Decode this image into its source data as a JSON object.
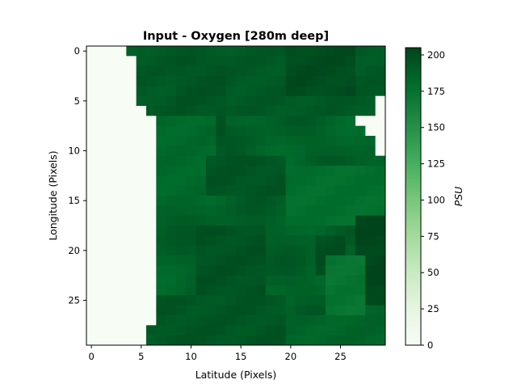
{
  "chart_data": {
    "type": "heatmap",
    "title": "Input - Oxygen [280m deep]",
    "xlabel": "Latitude (Pixels)",
    "ylabel": "Longitude (Pixels)",
    "colorbar_label": "PSU",
    "colormap": "Greens",
    "vmin": 0,
    "vmax": 205,
    "grid": false,
    "xlim": [
      -0.5,
      29.5
    ],
    "ylim": [
      29.5,
      -0.5
    ],
    "xticks": [
      0,
      5,
      10,
      15,
      20,
      25
    ],
    "yticks": [
      0,
      5,
      10,
      15,
      20,
      25
    ],
    "colorbar_ticks": [
      0,
      25,
      50,
      75,
      100,
      125,
      150,
      175,
      200
    ],
    "shape": [
      30,
      30
    ],
    "land_mask_left_cols": [
      4,
      5,
      5,
      5,
      5,
      5,
      6,
      7,
      7,
      7,
      7,
      7,
      7,
      7,
      7,
      7,
      7,
      7,
      7,
      7,
      7,
      7,
      7,
      7,
      7,
      7,
      7,
      7,
      6,
      6
    ],
    "land_mask_right": [
      {
        "row": 5,
        "cols": [
          29
        ]
      },
      {
        "row": 6,
        "cols": [
          29
        ]
      },
      {
        "row": 7,
        "cols": [
          27,
          28,
          29
        ]
      },
      {
        "row": 8,
        "cols": [
          28,
          29
        ]
      },
      {
        "row": 9,
        "cols": [
          29
        ]
      },
      {
        "row": 10,
        "cols": [
          29
        ]
      }
    ],
    "ocean_value_range": [
      170,
      205
    ],
    "ocean_regions": [
      {
        "rows": [
          0,
          6
        ],
        "cols": [
          5,
          29
        ],
        "value": 192
      },
      {
        "rows": [
          0,
          4
        ],
        "cols": [
          20,
          26
        ],
        "value": 200
      },
      {
        "rows": [
          1,
          10
        ],
        "cols": [
          9,
          13
        ],
        "value": 195
      },
      {
        "rows": [
          7,
          15
        ],
        "cols": [
          7,
          12
        ],
        "value": 182
      },
      {
        "rows": [
          11,
          14
        ],
        "cols": [
          12,
          19
        ],
        "value": 195
      },
      {
        "rows": [
          12,
          17
        ],
        "cols": [
          20,
          29
        ],
        "value": 178
      },
      {
        "rows": [
          18,
          24
        ],
        "cols": [
          11,
          17
        ],
        "value": 196
      },
      {
        "rows": [
          17,
          25
        ],
        "cols": [
          27,
          29
        ],
        "value": 204
      },
      {
        "rows": [
          19,
          22
        ],
        "cols": [
          23,
          25
        ],
        "value": 198
      },
      {
        "rows": [
          21,
          27
        ],
        "cols": [
          24,
          27
        ],
        "value": 174
      },
      {
        "rows": [
          25,
          29
        ],
        "cols": [
          7,
          19
        ],
        "value": 194
      },
      {
        "rows": [
          27,
          29
        ],
        "cols": [
          20,
          29
        ],
        "value": 185
      }
    ]
  }
}
